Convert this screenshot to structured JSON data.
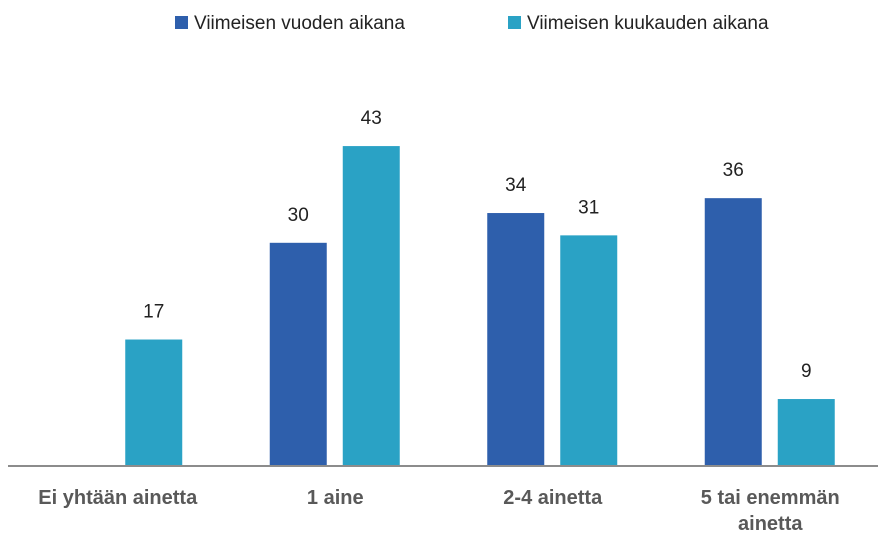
{
  "chart_data": {
    "type": "bar",
    "categories": [
      "Ei yhtään ainetta",
      "1 aine",
      "2-4 ainetta",
      "5 tai enemmän ainetta"
    ],
    "series": [
      {
        "name": "Viimeisen vuoden aikana",
        "color": "#2e5fac",
        "values": [
          null,
          30,
          34,
          36
        ]
      },
      {
        "name": "Viimeisen kuukauden aikana",
        "color": "#2aa2c5",
        "values": [
          17,
          43,
          31,
          9
        ]
      }
    ],
    "ylim": [
      0,
      50
    ],
    "legend": "top"
  }
}
